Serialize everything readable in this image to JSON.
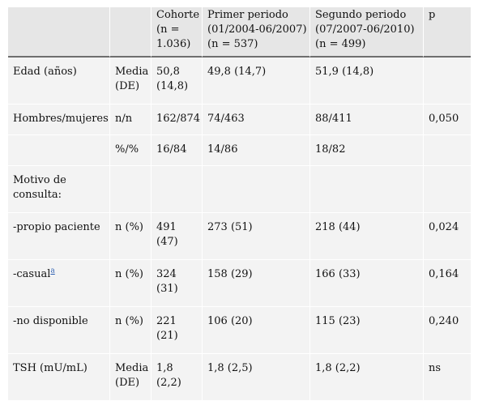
{
  "table": {
    "headers": [
      "",
      "",
      "Cohorte (n = 1.036)",
      "Primer periodo (01/2004-06/2007) (n = 537)",
      "Segundo periodo (07/2007-06/2010) (n = 499)",
      "p"
    ],
    "rows": [
      {
        "label": "Edad (años)",
        "stat": "Media (DE)",
        "cohorte": "50,8 (14,8)",
        "primer": "49,8 (14,7)",
        "segundo": "51,9 (14,8)",
        "p": ""
      },
      {
        "label": "Hombres/mujeres",
        "stat": "n/n",
        "cohorte": "162/874",
        "primer": "74/463",
        "segundo": "88/411",
        "p": "0,050"
      },
      {
        "label": "",
        "stat": "%/%",
        "cohorte": "16/84",
        "primer": "14/86",
        "segundo": "18/82",
        "p": ""
      },
      {
        "label": "Motivo de consulta:",
        "stat": "",
        "cohorte": "",
        "primer": "",
        "segundo": "",
        "p": ""
      },
      {
        "label": "-propio paciente",
        "stat": "n (%)",
        "cohorte": "491 (47)",
        "primer": "273 (51)",
        "segundo": "218 (44)",
        "p": "0,024"
      },
      {
        "label": "-casual",
        "label_footnote": "a",
        "stat": "n (%)",
        "cohorte": "324 (31)",
        "primer": "158 (29)",
        "segundo": "166 (33)",
        "p": "0,164"
      },
      {
        "label": "-no disponible",
        "stat": "n (%)",
        "cohorte": "221 (21)",
        "primer": "106 (20)",
        "segundo": "115 (23)",
        "p": "0,240"
      },
      {
        "label": "TSH (mU/mL)",
        "stat": "Media (DE)",
        "cohorte": "1,8 (2,2)",
        "primer": "1,8 (2,5)",
        "segundo": "1,8 (2,2)",
        "p": "ns"
      }
    ]
  }
}
